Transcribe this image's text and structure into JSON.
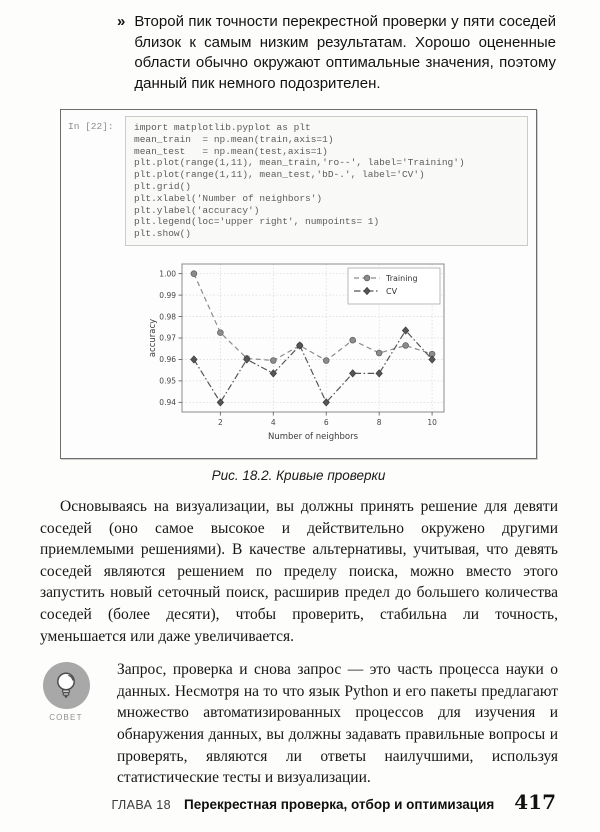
{
  "bullet": {
    "marker": "»",
    "text": "Второй пик точности перекрестной проверки у пяти соседей близок к самым низким результатам. Хорошо оцененные области обычно окружают оптимальные значения, поэтому данный пик немного подозрителен."
  },
  "figure": {
    "input_label": "In [22]:",
    "code_lines": [
      "import matplotlib.pyplot as plt",
      "mean_train  = np.mean(train,axis=1)",
      "mean_test   = np.mean(test,axis=1)",
      "plt.plot(range(1,11), mean_train,'ro--', label='Training')",
      "plt.plot(range(1,11), mean_test,'bD-.', label='CV')",
      "plt.grid()",
      "plt.xlabel('Number of neighbors')",
      "plt.ylabel('accuracy')",
      "plt.legend(loc='upper right', numpoints= 1)",
      "plt.show()"
    ],
    "caption": "Рис. 18.2. Кривые проверки"
  },
  "chart_data": {
    "type": "line",
    "title": "",
    "xlabel": "Number of neighbors",
    "ylabel": "accuracy",
    "x": [
      1,
      2,
      3,
      4,
      5,
      6,
      7,
      8,
      9,
      10
    ],
    "series": [
      {
        "name": "Training",
        "marker": "circle",
        "linestyle": "dashed",
        "color": "#8c8c8c",
        "values": [
          1.0,
          0.9725,
          0.9605,
          0.9595,
          0.9665,
          0.9595,
          0.969,
          0.963,
          0.9665,
          0.9625
        ]
      },
      {
        "name": "CV",
        "marker": "diamond",
        "linestyle": "dashdot",
        "color": "#565656",
        "values": [
          0.96,
          0.94,
          0.96,
          0.9535,
          0.9665,
          0.94,
          0.9535,
          0.9535,
          0.9735,
          0.96
        ]
      }
    ],
    "xticks": [
      2,
      4,
      6,
      8,
      10
    ],
    "yticks": [
      0.94,
      0.95,
      0.96,
      0.97,
      0.98,
      0.99,
      1.0
    ],
    "xlim": [
      0.55,
      10.45
    ],
    "ylim": [
      0.9355,
      1.0045
    ],
    "grid": true,
    "legend_position": "upper right"
  },
  "paragraph": "Основываясь на визуализации, вы должны принять решение для девяти соседей (оно самое высокое и действительно окружено другими приемлемыми решениями). В качестве альтернативы, учитывая, что девять соседей являются решением по пределу поиска, можно вместо этого запустить новый сеточный поиск, расширив предел до большего количества соседей (более десяти), чтобы проверить, стабильна ли точность, уменьшается или даже увеличивается.",
  "tip": {
    "label": "СОВЕТ",
    "icon": "lightbulb-icon",
    "icon_color": "#a8a8a8",
    "text": "Запрос, проверка и снова запрос — это часть процесса науки о данных. Несмотря на то что язык Python и его пакеты предлагают множество автоматизированных процессов для изучения и обнаружения данных, вы должны задавать правильные вопросы и проверять, являются ли ответы наилучшими, используя статистические тесты и визуализации."
  },
  "footer": {
    "chapter_label": "ГЛАВА 18",
    "chapter_title": "Перекрестная проверка, отбор и оптимизация",
    "page_number": "417"
  }
}
